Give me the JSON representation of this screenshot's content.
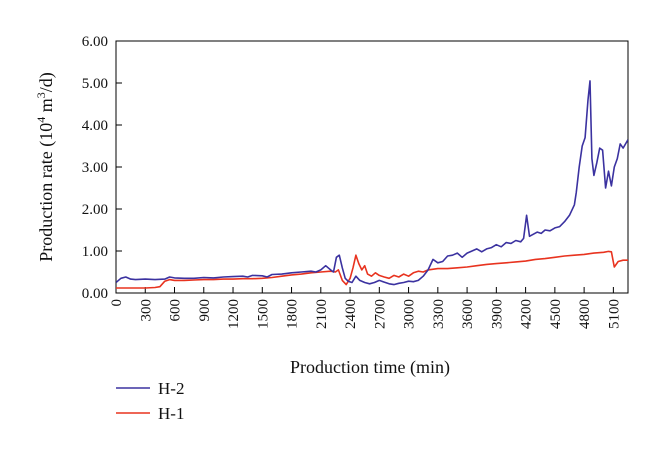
{
  "chart_data": {
    "type": "line",
    "xlabel": "Production time (min)",
    "ylabel_main": "Production rate (10",
    "ylabel_sup": "4",
    "ylabel_mid": " m",
    "ylabel_sup2": "3",
    "ylabel_end": "/d)",
    "xlim": [
      0,
      5250
    ],
    "ylim": [
      0,
      6
    ],
    "x_ticks": [
      0,
      300,
      600,
      900,
      1200,
      1500,
      1800,
      2100,
      2400,
      2700,
      3000,
      3300,
      3600,
      3900,
      4200,
      4500,
      4800,
      5100
    ],
    "x_tick_labels": [
      "0",
      "300",
      "600",
      "900",
      "1200",
      "1500",
      "1800",
      "2100",
      "2400",
      "2700",
      "3000",
      "3300",
      "3600",
      "3900",
      "4200",
      "4500",
      "4800",
      "5100"
    ],
    "y_ticks": [
      0,
      1,
      2,
      3,
      4,
      5,
      6
    ],
    "y_tick_labels": [
      "0.00",
      "1.00",
      "2.00",
      "3.00",
      "4.00",
      "5.00",
      "6.00"
    ],
    "grid": false,
    "legend_position": "bottom-left",
    "series": [
      {
        "name": "H-2",
        "color": "#3b32a0",
        "points": [
          [
            0,
            0.25
          ],
          [
            50,
            0.35
          ],
          [
            100,
            0.38
          ],
          [
            150,
            0.33
          ],
          [
            200,
            0.32
          ],
          [
            300,
            0.33
          ],
          [
            400,
            0.32
          ],
          [
            500,
            0.33
          ],
          [
            550,
            0.38
          ],
          [
            600,
            0.36
          ],
          [
            700,
            0.35
          ],
          [
            800,
            0.35
          ],
          [
            900,
            0.37
          ],
          [
            1000,
            0.36
          ],
          [
            1100,
            0.38
          ],
          [
            1200,
            0.39
          ],
          [
            1300,
            0.4
          ],
          [
            1350,
            0.38
          ],
          [
            1400,
            0.42
          ],
          [
            1500,
            0.41
          ],
          [
            1550,
            0.38
          ],
          [
            1600,
            0.44
          ],
          [
            1700,
            0.45
          ],
          [
            1800,
            0.48
          ],
          [
            1900,
            0.5
          ],
          [
            2000,
            0.52
          ],
          [
            2050,
            0.5
          ],
          [
            2100,
            0.55
          ],
          [
            2150,
            0.65
          ],
          [
            2200,
            0.55
          ],
          [
            2230,
            0.5
          ],
          [
            2260,
            0.85
          ],
          [
            2290,
            0.9
          ],
          [
            2320,
            0.6
          ],
          [
            2350,
            0.35
          ],
          [
            2380,
            0.28
          ],
          [
            2420,
            0.25
          ],
          [
            2460,
            0.4
          ],
          [
            2500,
            0.3
          ],
          [
            2550,
            0.25
          ],
          [
            2600,
            0.22
          ],
          [
            2650,
            0.25
          ],
          [
            2700,
            0.3
          ],
          [
            2750,
            0.26
          ],
          [
            2800,
            0.22
          ],
          [
            2850,
            0.2
          ],
          [
            2900,
            0.23
          ],
          [
            2950,
            0.25
          ],
          [
            3000,
            0.28
          ],
          [
            3050,
            0.27
          ],
          [
            3100,
            0.3
          ],
          [
            3150,
            0.4
          ],
          [
            3200,
            0.55
          ],
          [
            3250,
            0.8
          ],
          [
            3300,
            0.72
          ],
          [
            3350,
            0.75
          ],
          [
            3400,
            0.88
          ],
          [
            3450,
            0.9
          ],
          [
            3500,
            0.95
          ],
          [
            3550,
            0.85
          ],
          [
            3600,
            0.95
          ],
          [
            3650,
            1.0
          ],
          [
            3700,
            1.05
          ],
          [
            3750,
            0.98
          ],
          [
            3800,
            1.05
          ],
          [
            3850,
            1.08
          ],
          [
            3900,
            1.15
          ],
          [
            3950,
            1.1
          ],
          [
            4000,
            1.2
          ],
          [
            4050,
            1.18
          ],
          [
            4100,
            1.25
          ],
          [
            4150,
            1.22
          ],
          [
            4180,
            1.3
          ],
          [
            4210,
            1.85
          ],
          [
            4240,
            1.35
          ],
          [
            4280,
            1.4
          ],
          [
            4320,
            1.45
          ],
          [
            4360,
            1.42
          ],
          [
            4400,
            1.5
          ],
          [
            4450,
            1.48
          ],
          [
            4500,
            1.55
          ],
          [
            4550,
            1.58
          ],
          [
            4600,
            1.7
          ],
          [
            4650,
            1.85
          ],
          [
            4700,
            2.1
          ],
          [
            4720,
            2.4
          ],
          [
            4750,
            3.0
          ],
          [
            4780,
            3.5
          ],
          [
            4810,
            3.7
          ],
          [
            4840,
            4.6
          ],
          [
            4860,
            5.05
          ],
          [
            4880,
            3.2
          ],
          [
            4900,
            2.8
          ],
          [
            4930,
            3.1
          ],
          [
            4960,
            3.45
          ],
          [
            4990,
            3.4
          ],
          [
            5020,
            2.5
          ],
          [
            5050,
            2.9
          ],
          [
            5080,
            2.55
          ],
          [
            5110,
            3.0
          ],
          [
            5140,
            3.2
          ],
          [
            5170,
            3.55
          ],
          [
            5200,
            3.45
          ],
          [
            5250,
            3.65
          ]
        ]
      },
      {
        "name": "H-1",
        "color": "#e8331f",
        "points": [
          [
            0,
            0.12
          ],
          [
            100,
            0.12
          ],
          [
            200,
            0.12
          ],
          [
            300,
            0.12
          ],
          [
            400,
            0.13
          ],
          [
            450,
            0.15
          ],
          [
            500,
            0.28
          ],
          [
            550,
            0.32
          ],
          [
            600,
            0.3
          ],
          [
            700,
            0.3
          ],
          [
            800,
            0.31
          ],
          [
            900,
            0.32
          ],
          [
            1000,
            0.32
          ],
          [
            1100,
            0.33
          ],
          [
            1200,
            0.33
          ],
          [
            1300,
            0.34
          ],
          [
            1400,
            0.34
          ],
          [
            1500,
            0.35
          ],
          [
            1600,
            0.37
          ],
          [
            1700,
            0.4
          ],
          [
            1800,
            0.43
          ],
          [
            1900,
            0.45
          ],
          [
            2000,
            0.48
          ],
          [
            2100,
            0.5
          ],
          [
            2200,
            0.52
          ],
          [
            2250,
            0.5
          ],
          [
            2280,
            0.55
          ],
          [
            2320,
            0.3
          ],
          [
            2360,
            0.2
          ],
          [
            2400,
            0.35
          ],
          [
            2430,
            0.6
          ],
          [
            2460,
            0.9
          ],
          [
            2490,
            0.7
          ],
          [
            2520,
            0.55
          ],
          [
            2550,
            0.65
          ],
          [
            2580,
            0.45
          ],
          [
            2620,
            0.4
          ],
          [
            2660,
            0.48
          ],
          [
            2700,
            0.42
          ],
          [
            2750,
            0.38
          ],
          [
            2800,
            0.35
          ],
          [
            2850,
            0.42
          ],
          [
            2900,
            0.38
          ],
          [
            2950,
            0.45
          ],
          [
            3000,
            0.4
          ],
          [
            3050,
            0.48
          ],
          [
            3100,
            0.52
          ],
          [
            3150,
            0.5
          ],
          [
            3200,
            0.55
          ],
          [
            3300,
            0.58
          ],
          [
            3400,
            0.58
          ],
          [
            3500,
            0.6
          ],
          [
            3600,
            0.62
          ],
          [
            3700,
            0.65
          ],
          [
            3800,
            0.68
          ],
          [
            3900,
            0.7
          ],
          [
            4000,
            0.72
          ],
          [
            4100,
            0.74
          ],
          [
            4200,
            0.76
          ],
          [
            4300,
            0.8
          ],
          [
            4400,
            0.82
          ],
          [
            4500,
            0.85
          ],
          [
            4600,
            0.88
          ],
          [
            4700,
            0.9
          ],
          [
            4800,
            0.92
          ],
          [
            4900,
            0.95
          ],
          [
            5000,
            0.97
          ],
          [
            5050,
            0.99
          ],
          [
            5080,
            0.98
          ],
          [
            5110,
            0.62
          ],
          [
            5150,
            0.75
          ],
          [
            5200,
            0.78
          ],
          [
            5250,
            0.78
          ]
        ]
      }
    ]
  }
}
